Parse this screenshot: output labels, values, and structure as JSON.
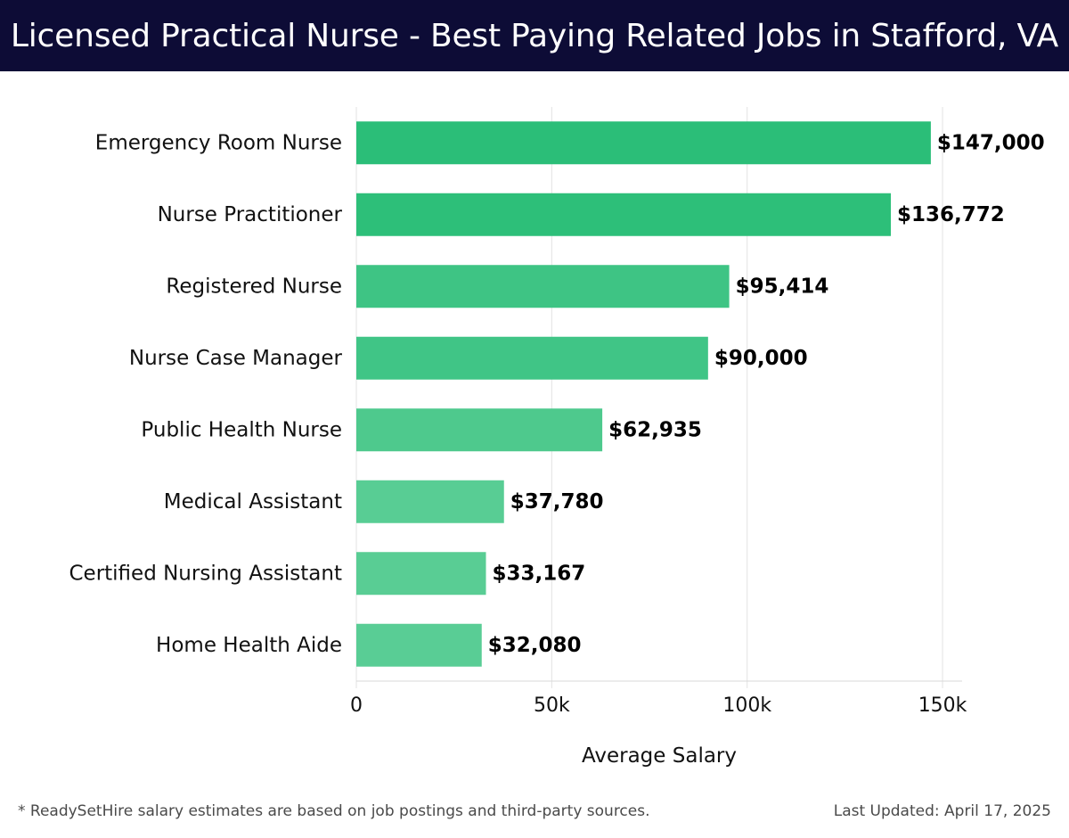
{
  "header": {
    "title": "Licensed Practical Nurse - Best Paying Related Jobs in Stafford, VA"
  },
  "chart_data": {
    "type": "bar",
    "orientation": "horizontal",
    "title": "Licensed Practical Nurse - Best Paying Related Jobs in Stafford, VA",
    "xlabel": "Average Salary",
    "ylabel": "",
    "xlim": [
      0,
      155000
    ],
    "x_ticks": [
      0,
      50000,
      100000,
      150000
    ],
    "x_tick_labels": [
      "0",
      "50k",
      "100k",
      "150k"
    ],
    "grid": "vertical",
    "categories": [
      "Emergency Room Nurse",
      "Nurse Practitioner",
      "Registered Nurse",
      "Nurse Case Manager",
      "Public Health Nurse",
      "Medical Assistant",
      "Certified Nursing Assistant",
      "Home Health Aide"
    ],
    "values": [
      147000,
      136772,
      95414,
      90000,
      62935,
      37780,
      33167,
      32080
    ],
    "value_labels": [
      "$147,000",
      "$136,772",
      "$95,414",
      "$90,000",
      "$62,935",
      "$37,780",
      "$33,167",
      "$32,080"
    ],
    "bar_colors": [
      "#2bbe78",
      "#2dbf79",
      "#3ec484",
      "#40c586",
      "#4ec98d",
      "#58cd94",
      "#59cd94",
      "#59cd95"
    ]
  },
  "footer": {
    "note": "* ReadySetHire salary estimates are based on job postings and third-party sources.",
    "updated": "Last Updated: April 17, 2025"
  }
}
